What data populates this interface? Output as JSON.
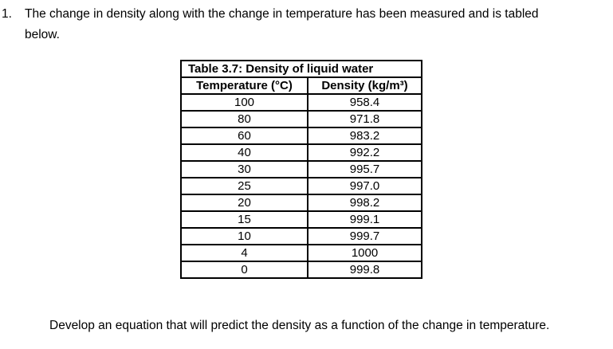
{
  "problem": {
    "number": "1.",
    "line1": "The change in density along with the change in temperature has been measured and is tabled",
    "line2": "below."
  },
  "table": {
    "title": "Table 3.7: Density of liquid water",
    "columns": [
      "Temperature (°C)",
      "Density (kg/m³)"
    ],
    "rows": [
      [
        "100",
        "958.4"
      ],
      [
        "80",
        "971.8"
      ],
      [
        "60",
        "983.2"
      ],
      [
        "40",
        "992.2"
      ],
      [
        "30",
        "995.7"
      ],
      [
        "25",
        "997.0"
      ],
      [
        "20",
        "998.2"
      ],
      [
        "15",
        "999.1"
      ],
      [
        "10",
        "999.7"
      ],
      [
        "4",
        "1000"
      ],
      [
        "0",
        "999.8"
      ]
    ]
  },
  "closing": "Develop an equation that will predict the density as a function of the change in temperature.",
  "colors": {
    "text": "#000000",
    "border": "#000000",
    "background": "#ffffff"
  }
}
